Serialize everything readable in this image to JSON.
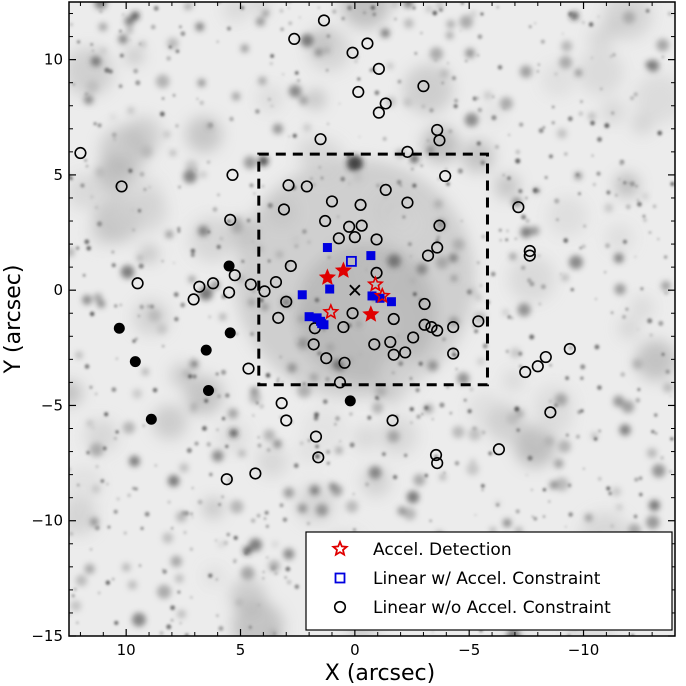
{
  "chart_data": {
    "type": "scatter",
    "title": "",
    "xlabel": "X (arcsec)",
    "ylabel": "Y (arcsec)",
    "xlim": [
      12.5,
      -14
    ],
    "ylim": [
      -15,
      12.5
    ],
    "x_ticks": [
      10,
      5,
      0,
      -5,
      -10
    ],
    "x_tick_labels": [
      "10",
      "5",
      "0",
      "−5",
      "−10"
    ],
    "y_ticks": [
      10,
      5,
      0,
      -5,
      -10,
      -15
    ],
    "y_tick_labels": [
      "10",
      "5",
      "0",
      "−5",
      "−10",
      "−15"
    ],
    "background": "grayscale star field image",
    "center_marker": {
      "x": 0,
      "y": 0,
      "symbol": "x"
    },
    "box": {
      "x0": 4.2,
      "x1": -5.8,
      "y0": -4.1,
      "y1": 5.9,
      "style": "dashed"
    },
    "legend": {
      "position": "bottom-right",
      "entries": [
        {
          "label": "Accel. Detection",
          "marker": "star",
          "color": "#e00000"
        },
        {
          "label": "Linear w/ Accel. Constraint",
          "marker": "square",
          "color": "#0000e0"
        },
        {
          "label": "Linear w/o Accel. Constraint",
          "marker": "circle",
          "color": "#000000"
        }
      ]
    },
    "series": [
      {
        "name": "Accel. Detection",
        "marker": "star",
        "color": "#e00000",
        "points": [
          [
            1.2,
            0.55
          ],
          [
            0.5,
            0.85
          ],
          [
            -0.9,
            0.25
          ],
          [
            -1.2,
            -0.25
          ],
          [
            1.05,
            -0.95
          ],
          [
            -0.7,
            -1.05
          ]
        ]
      },
      {
        "name": "Linear w/ Accel. Constraint",
        "marker": "square",
        "color": "#0000e0",
        "filled_points": [
          [
            1.2,
            1.85
          ],
          [
            -0.7,
            1.5
          ],
          [
            2.3,
            -0.2
          ],
          [
            1.1,
            0.05
          ],
          [
            -0.75,
            -0.25
          ],
          [
            -1.1,
            -0.35
          ],
          [
            -1.6,
            -0.5
          ],
          [
            2.0,
            -1.15
          ],
          [
            1.65,
            -1.2
          ],
          [
            1.5,
            -1.35
          ],
          [
            1.35,
            -1.5
          ],
          [
            1.45,
            -1.45
          ]
        ],
        "open_points": [
          [
            0.15,
            1.25
          ]
        ]
      },
      {
        "name": "Linear w/o Accel. Constraint",
        "marker": "circle",
        "color": "#000000",
        "open_points": [
          [
            1.35,
            11.7
          ],
          [
            2.65,
            10.9
          ],
          [
            -0.55,
            10.7
          ],
          [
            0.1,
            10.3
          ],
          [
            -1.05,
            9.6
          ],
          [
            -0.15,
            8.6
          ],
          [
            -1.35,
            8.1
          ],
          [
            -3.0,
            8.85
          ],
          [
            -1.05,
            7.7
          ],
          [
            1.5,
            6.55
          ],
          [
            -3.6,
            6.95
          ],
          [
            -3.7,
            6.5
          ],
          [
            -2.3,
            6.0
          ],
          [
            12.0,
            5.95
          ],
          [
            -3.95,
            4.95
          ],
          [
            5.35,
            5.0
          ],
          [
            10.2,
            4.5
          ],
          [
            2.9,
            4.55
          ],
          [
            2.1,
            4.5
          ],
          [
            -1.35,
            4.35
          ],
          [
            -2.3,
            3.8
          ],
          [
            1.0,
            3.85
          ],
          [
            -0.25,
            3.7
          ],
          [
            3.1,
            3.5
          ],
          [
            5.45,
            3.05
          ],
          [
            1.3,
            3.0
          ],
          [
            0.25,
            2.75
          ],
          [
            -3.7,
            2.8
          ],
          [
            0.0,
            2.3
          ],
          [
            -0.3,
            2.8
          ],
          [
            0.7,
            2.25
          ],
          [
            -0.95,
            2.2
          ],
          [
            -3.6,
            1.85
          ],
          [
            -7.15,
            3.6
          ],
          [
            -7.65,
            1.7
          ],
          [
            -7.65,
            1.5
          ],
          [
            -3.2,
            1.5
          ],
          [
            2.8,
            1.05
          ],
          [
            5.25,
            0.65
          ],
          [
            -0.95,
            0.75
          ],
          [
            3.45,
            0.35
          ],
          [
            6.2,
            0.3
          ],
          [
            9.5,
            0.3
          ],
          [
            4.55,
            0.25
          ],
          [
            6.8,
            0.15
          ],
          [
            3.95,
            -0.05
          ],
          [
            5.5,
            -0.1
          ],
          [
            7.05,
            -0.4
          ],
          [
            3.0,
            -0.5
          ],
          [
            -3.05,
            -0.6
          ],
          [
            0.1,
            -1.0
          ],
          [
            3.35,
            -1.2
          ],
          [
            -1.7,
            -1.25
          ],
          [
            -5.4,
            -1.35
          ],
          [
            -3.05,
            -1.5
          ],
          [
            -3.35,
            -1.6
          ],
          [
            -4.3,
            -1.6
          ],
          [
            0.5,
            -1.6
          ],
          [
            1.75,
            -1.65
          ],
          [
            -3.6,
            -1.75
          ],
          [
            -2.55,
            -2.05
          ],
          [
            -1.55,
            -2.25
          ],
          [
            1.8,
            -2.35
          ],
          [
            -0.85,
            -2.35
          ],
          [
            -4.3,
            -2.75
          ],
          [
            -1.7,
            -2.8
          ],
          [
            1.25,
            -2.95
          ],
          [
            -2.2,
            -2.7
          ],
          [
            0.45,
            -3.15
          ],
          [
            -8.35,
            -2.9
          ],
          [
            -9.4,
            -2.55
          ],
          [
            -8.0,
            -3.3
          ],
          [
            -7.45,
            -3.55
          ],
          [
            4.65,
            -3.4
          ],
          [
            0.65,
            -4.0
          ],
          [
            3.2,
            -4.9
          ],
          [
            -8.55,
            -5.3
          ],
          [
            3.0,
            -5.65
          ],
          [
            -1.65,
            -5.65
          ],
          [
            1.7,
            -6.35
          ],
          [
            1.6,
            -7.25
          ],
          [
            -6.3,
            -6.9
          ],
          [
            4.35,
            -7.95
          ],
          [
            5.6,
            -8.2
          ],
          [
            -3.55,
            -7.15
          ],
          [
            -3.6,
            -7.5
          ]
        ]
      },
      {
        "name": "unlabeled filled circles",
        "marker": "circle-filled",
        "color": "#000000",
        "points": [
          [
            5.5,
            1.05
          ],
          [
            5.45,
            -1.85
          ],
          [
            10.3,
            -1.65
          ],
          [
            9.6,
            -3.1
          ],
          [
            6.5,
            -2.6
          ],
          [
            6.4,
            -4.35
          ],
          [
            8.9,
            -5.6
          ],
          [
            0.2,
            -4.8
          ]
        ]
      }
    ]
  }
}
